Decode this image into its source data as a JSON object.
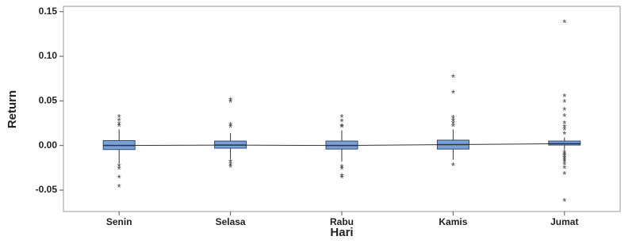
{
  "chart_data": {
    "type": "box",
    "x_label": "Hari",
    "y_label": "Return",
    "categories": [
      "Senin",
      "Selasa",
      "Rabu",
      "Kamis",
      "Jumat"
    ],
    "color": "#7ba0d4",
    "ylim": [
      -0.074,
      0.156
    ],
    "yticks": [
      -0.05,
      {
        "value": 0,
        "label": "0.00"
      },
      0.05,
      {
        "value": 0.1,
        "label": "0.10"
      },
      0.15
    ],
    "boxes": [
      {
        "min": -0.02,
        "q1": -0.0045,
        "median": 0.0,
        "q3": 0.0055,
        "max": 0.018,
        "outliers": [
          0.032,
          0.028,
          0.024,
          0.022,
          -0.023,
          -0.026,
          -0.036,
          -0.046
        ]
      },
      {
        "min": -0.015,
        "q1": -0.003,
        "median": 0.0005,
        "q3": 0.005,
        "max": 0.014,
        "outliers": [
          0.051,
          0.049,
          0.023,
          0.021,
          -0.018,
          -0.021,
          -0.024
        ]
      },
      {
        "min": -0.018,
        "q1": -0.004,
        "median": 0.0,
        "q3": 0.005,
        "max": 0.017,
        "outliers": [
          0.032,
          0.027,
          0.022,
          0.021,
          -0.024,
          -0.026,
          -0.034,
          -0.036
        ]
      },
      {
        "min": -0.016,
        "q1": -0.004,
        "median": 0.001,
        "q3": 0.006,
        "max": 0.018,
        "outliers": [
          0.077,
          0.059,
          0.031,
          0.028,
          0.025,
          0.022,
          -0.022
        ]
      },
      {
        "min": -0.005,
        "q1": 0.0005,
        "median": 0.002,
        "q3": 0.005,
        "max": 0.009,
        "outliers": [
          0.138,
          0.055,
          0.049,
          0.04,
          0.033,
          0.025,
          0.021,
          0.018,
          0.013,
          -0.008,
          -0.01,
          -0.012,
          -0.014,
          -0.016,
          -0.018,
          -0.021,
          -0.025,
          -0.032,
          -0.062
        ]
      }
    ]
  }
}
